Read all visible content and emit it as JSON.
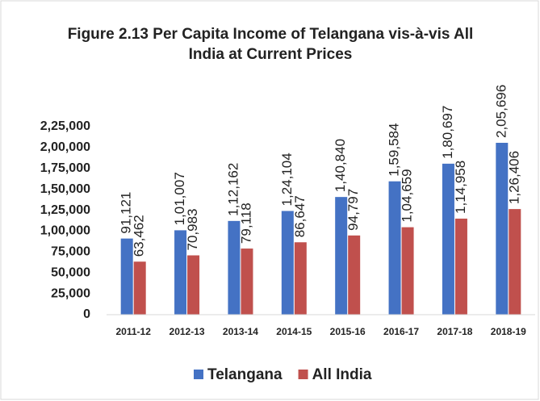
{
  "chart_data": {
    "type": "bar",
    "title": "Figure 2.13 Per Capita Income of Telangana vis-à-vis All India at Current Prices",
    "categories": [
      "2011-12",
      "2012-13",
      "2013-14",
      "2014-15",
      "2015-16",
      "2016-17",
      "2017-18",
      "2018-19"
    ],
    "series": [
      {
        "name": "Telangana",
        "color": "#4472c4",
        "values": [
          91121,
          101007,
          112162,
          124104,
          140840,
          159584,
          180697,
          205696
        ],
        "value_labels": [
          "91,121",
          "1,01,007",
          "1,12,162",
          "1,24,104",
          "1,40,840",
          "1,59,584",
          "1,80,697",
          "2,05,696"
        ]
      },
      {
        "name": "All India",
        "color": "#c0504d",
        "values": [
          63462,
          70983,
          79118,
          86647,
          94797,
          104659,
          114958,
          126406
        ],
        "value_labels": [
          "63,462",
          "70,983",
          "79,118",
          "86,647",
          "94,797",
          "1,04,659",
          "1,14,958",
          "1,26,406"
        ]
      }
    ],
    "ylim": [
      0,
      225000
    ],
    "yticks": [
      0,
      {
        "value": 25000,
        "label": "25,000"
      },
      {
        "value": 50000,
        "label": "50,000"
      },
      {
        "value": 75000,
        "label": "75,000"
      },
      {
        "value": 100000,
        "label": "1,00,000"
      },
      {
        "value": 125000,
        "label": "1,25,000"
      },
      {
        "value": 150000,
        "label": "1,50,000"
      },
      {
        "value": 175000,
        "label": "1,75,000"
      },
      {
        "value": 200000,
        "label": "2,00,000"
      },
      {
        "value": 225000,
        "label": "2,25,000"
      }
    ],
    "grid": false
  }
}
